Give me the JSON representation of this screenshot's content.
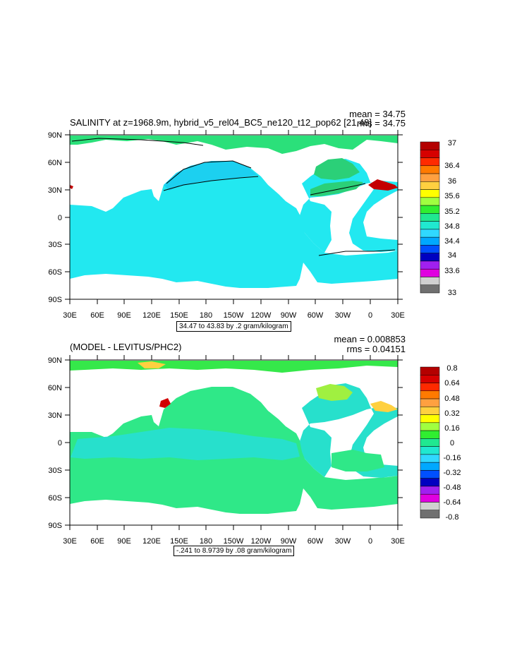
{
  "panels": [
    {
      "title": "SALINITY at z=1968.9m, hybrid_v5_rel04_BC5_ne120_t12_pop62 [21,48]",
      "mean_text": "mean = 34.75",
      "rms_text": "rms = 34.75",
      "range_text": "34.47 to 43.83 by .2 gram/kilogram",
      "lat_labels": [
        "90N",
        "60N",
        "30N",
        "0",
        "30S",
        "60S",
        "90S"
      ],
      "lon_labels": [
        "30E",
        "60E",
        "90E",
        "120E",
        "150E",
        "180",
        "150W",
        "120W",
        "90W",
        "60W",
        "30W",
        "0",
        "30E"
      ],
      "colorbar": {
        "labels": [
          "37",
          "36.4",
          "36",
          "35.6",
          "35.2",
          "34.8",
          "34.4",
          "34",
          "33.6",
          "33"
        ],
        "colors": [
          "#b40000",
          "#d60000",
          "#ff2a00",
          "#ff7a00",
          "#ffa040",
          "#ffd040",
          "#ffff00",
          "#a0ff40",
          "#30ee30",
          "#20e890",
          "#20e8d0",
          "#30d8ff",
          "#00a8ff",
          "#0050ff",
          "#0000c0",
          "#a020f0",
          "#e000e0",
          "#d0d0d0",
          "#707070"
        ]
      },
      "fields": {
        "ocean": "#22e8f0",
        "arctic": "#2be07a",
        "atlantic": "#2bd078",
        "nw_pacific": "#1cd0f0",
        "med": "#c40000"
      }
    },
    {
      "title": "(MODEL - LEVITUS/PHC2)",
      "mean_text": "mean = 0.008853",
      "rms_text": "rms = 0.04151",
      "range_text": "-.241 to 8.9739 by .08 gram/kilogram",
      "lat_labels": [
        "90N",
        "60N",
        "30N",
        "0",
        "30S",
        "60S",
        "90S"
      ],
      "lon_labels": [
        "30E",
        "60E",
        "90E",
        "120E",
        "150E",
        "180",
        "150W",
        "120W",
        "90W",
        "60W",
        "30W",
        "0",
        "30E"
      ],
      "colorbar": {
        "labels": [
          "0.8",
          "0.64",
          "0.48",
          "0.32",
          "0.16",
          "0",
          "-0.16",
          "-0.32",
          "-0.48",
          "-0.64",
          "-0.8"
        ],
        "colors": [
          "#b40000",
          "#d60000",
          "#ff2a00",
          "#ff7a00",
          "#ffa040",
          "#ffd040",
          "#ffff00",
          "#a0ff40",
          "#30ee30",
          "#20e890",
          "#20e8d0",
          "#30d8ff",
          "#00a8ff",
          "#0050ff",
          "#0000c0",
          "#a020f0",
          "#e000e0",
          "#d0d0d0",
          "#707070"
        ]
      },
      "fields": {
        "ocean": "#2fe888",
        "tropics": "#27e0cc",
        "arctic": "#35e84a",
        "hudson": "#a0f040",
        "med": "#d20000"
      }
    }
  ],
  "chart_data": [
    {
      "type": "heatmap",
      "title": "SALINITY at z=1968.9m, hybrid_v5_rel04_BC5_ne120_t12_pop62 [21,48]",
      "mean": 34.75,
      "rms": 34.75,
      "y_ticks": [
        "90N",
        "60N",
        "30N",
        "0",
        "30S",
        "60S",
        "90S"
      ],
      "x_ticks": [
        "30E",
        "60E",
        "90E",
        "120E",
        "150E",
        "180",
        "150W",
        "120W",
        "90W",
        "60W",
        "30W",
        "0",
        "30E"
      ],
      "contour_range": "34.47 to 43.83 by .2 gram/kilogram",
      "colorbar_labels": [
        37,
        36.4,
        36,
        35.6,
        35.2,
        34.8,
        34.4,
        34,
        33.6,
        33
      ]
    },
    {
      "type": "heatmap",
      "title": "(MODEL - LEVITUS/PHC2)",
      "mean": 0.008853,
      "rms": 0.04151,
      "y_ticks": [
        "90N",
        "60N",
        "30N",
        "0",
        "30S",
        "60S",
        "90S"
      ],
      "x_ticks": [
        "30E",
        "60E",
        "90E",
        "120E",
        "150E",
        "180",
        "150W",
        "120W",
        "90W",
        "60W",
        "30W",
        "0",
        "30E"
      ],
      "contour_range": "-.241 to 8.9739 by .08 gram/kilogram",
      "colorbar_labels": [
        0.8,
        0.64,
        0.48,
        0.32,
        0.16,
        0,
        -0.16,
        -0.32,
        -0.48,
        -0.64,
        -0.8
      ]
    }
  ]
}
